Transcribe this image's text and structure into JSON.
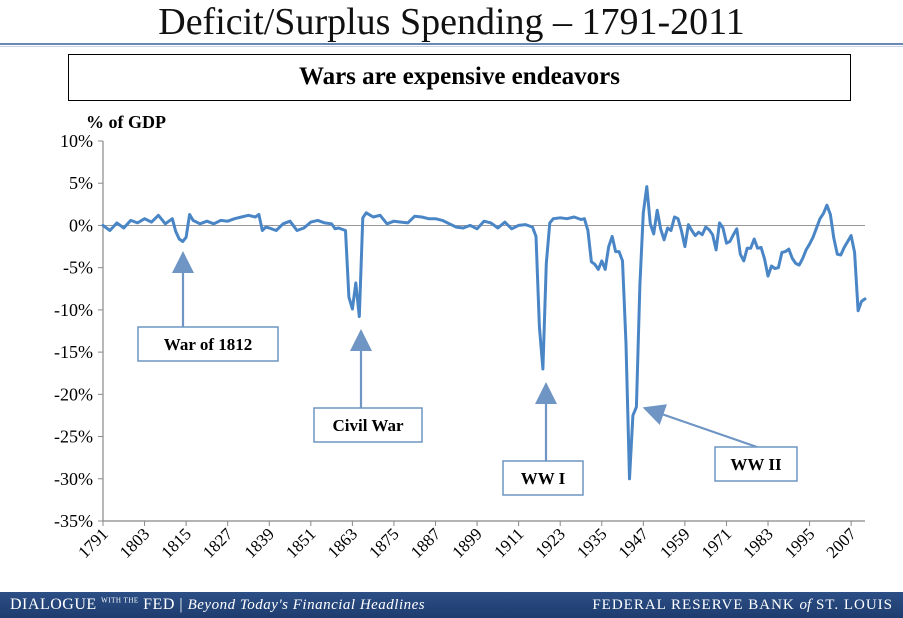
{
  "header": {
    "title": "Deficit/Surplus Spending – 1791-2011",
    "subtitle": "Wars are expensive endeavors"
  },
  "footer": {
    "brand_left": "DIALOGUE",
    "brand_with": "WITH THE",
    "brand_fed": "FED",
    "tagline": "Beyond Today's Financial Headlines",
    "org_prefix": "FEDERAL RESERVE BANK",
    "org_of": "of",
    "org_suffix": "ST. LOUIS"
  },
  "colors": {
    "line": "#4a86c6",
    "arrow": "#6f95c4",
    "footer_bg": "#1f3e72"
  },
  "chart_data": {
    "type": "line",
    "ylabel": "% of GDP",
    "xlabel": "",
    "ylim": [
      -35,
      10
    ],
    "yticks": [
      10,
      5,
      0,
      -5,
      -10,
      -15,
      -20,
      -25,
      -30,
      -35
    ],
    "ytick_labels": [
      "10%",
      "5%",
      "0%",
      "-5%",
      "-10%",
      "-15%",
      "-20%",
      "-25%",
      "-30%",
      "-35%"
    ],
    "xlim": [
      1791,
      2011
    ],
    "xticks": [
      1791,
      1803,
      1815,
      1827,
      1839,
      1851,
      1863,
      1875,
      1887,
      1899,
      1911,
      1923,
      1935,
      1947,
      1959,
      1971,
      1983,
      1995,
      2007
    ],
    "grid": false,
    "series": [
      {
        "x": [
          1791,
          1793,
          1795,
          1797,
          1799,
          1801,
          1803,
          1805,
          1807,
          1809,
          1811,
          1812,
          1813,
          1814,
          1815,
          1816,
          1817,
          1819,
          1821,
          1823,
          1825,
          1827,
          1829,
          1831,
          1833,
          1835,
          1836,
          1837,
          1838,
          1839,
          1841,
          1843,
          1845,
          1847,
          1849,
          1851,
          1853,
          1855,
          1857,
          1858,
          1859,
          1861,
          1862,
          1863,
          1864,
          1865,
          1866,
          1867,
          1869,
          1871,
          1873,
          1875,
          1877,
          1879,
          1881,
          1883,
          1885,
          1887,
          1889,
          1891,
          1893,
          1895,
          1897,
          1899,
          1901,
          1903,
          1905,
          1907,
          1909,
          1911,
          1913,
          1915,
          1916,
          1917,
          1918,
          1919,
          1920,
          1921,
          1923,
          1925,
          1927,
          1929,
          1930,
          1931,
          1932,
          1933,
          1934,
          1935,
          1936,
          1937,
          1938,
          1939,
          1940,
          1941,
          1942,
          1943,
          1944,
          1945,
          1946,
          1947,
          1948,
          1949,
          1950,
          1951,
          1952,
          1953,
          1954,
          1955,
          1956,
          1957,
          1958,
          1959,
          1960,
          1961,
          1962,
          1963,
          1964,
          1965,
          1966,
          1967,
          1968,
          1969,
          1970,
          1971,
          1972,
          1973,
          1974,
          1975,
          1976,
          1977,
          1978,
          1979,
          1980,
          1981,
          1982,
          1983,
          1984,
          1985,
          1986,
          1987,
          1988,
          1989,
          1990,
          1991,
          1992,
          1993,
          1994,
          1995,
          1996,
          1997,
          1998,
          1999,
          2000,
          2001,
          2002,
          2003,
          2004,
          2005,
          2006,
          2007,
          2008,
          2009,
          2010,
          2011
        ],
        "y": [
          0,
          -0.6,
          0.3,
          -0.3,
          0.6,
          0.3,
          0.8,
          0.4,
          1.2,
          0.2,
          0.8,
          -0.7,
          -1.6,
          -1.9,
          -1.4,
          1.3,
          0.6,
          0.2,
          0.5,
          0.2,
          0.6,
          0.5,
          0.8,
          1,
          1.2,
          1,
          1.3,
          -0.6,
          -0.2,
          -0.3,
          -0.6,
          0.2,
          0.5,
          -0.6,
          -0.3,
          0.4,
          0.6,
          0.3,
          0.2,
          -0.4,
          -0.3,
          -0.6,
          -8.5,
          -9.9,
          -6.8,
          -10.8,
          0.9,
          1.5,
          1,
          1.2,
          0.2,
          0.5,
          0.4,
          0.3,
          1.1,
          1,
          0.8,
          0.8,
          0.6,
          0.2,
          -0.2,
          -0.3,
          0,
          -0.4,
          0.5,
          0.3,
          -0.3,
          0.4,
          -0.4,
          0,
          0.1,
          -0.2,
          -1.3,
          -12,
          -17,
          -4.5,
          0.3,
          0.8,
          0.9,
          0.8,
          1,
          0.7,
          0.8,
          -0.6,
          -4.3,
          -4.6,
          -5.2,
          -4.2,
          -5.2,
          -2.5,
          -1.3,
          -3.1,
          -3.1,
          -4.2,
          -14,
          -30,
          -22.5,
          -21.5,
          -7,
          1.5,
          4.6,
          0.2,
          -1,
          1.8,
          -0.4,
          -1.7,
          -0.3,
          -0.6,
          1,
          0.8,
          -0.6,
          -2.5,
          0.1,
          -0.6,
          -1.2,
          -0.8,
          -1.1,
          -0.2,
          -0.5,
          -1.1,
          -2.9,
          0.3,
          -0.3,
          -2.1,
          -1.9,
          -1.1,
          -0.4,
          -3.4,
          -4.2,
          -2.7,
          -2.7,
          -1.6,
          -2.7,
          -2.6,
          -4,
          -6,
          -4.8,
          -5.1,
          -5,
          -3.2,
          -3.1,
          -2.8,
          -3.9,
          -4.5,
          -4.7,
          -3.9,
          -2.9,
          -2.2,
          -1.4,
          -0.3,
          0.8,
          1.4,
          2.4,
          1.3,
          -1.5,
          -3.4,
          -3.5,
          -2.6,
          -1.9,
          -1.2,
          -3.2,
          -10.1,
          -9,
          -8.7
        ]
      }
    ],
    "annotations": [
      {
        "label": "War of 1812"
      },
      {
        "label": "Civil War"
      },
      {
        "label": "WW I"
      },
      {
        "label": "WW II"
      }
    ]
  }
}
